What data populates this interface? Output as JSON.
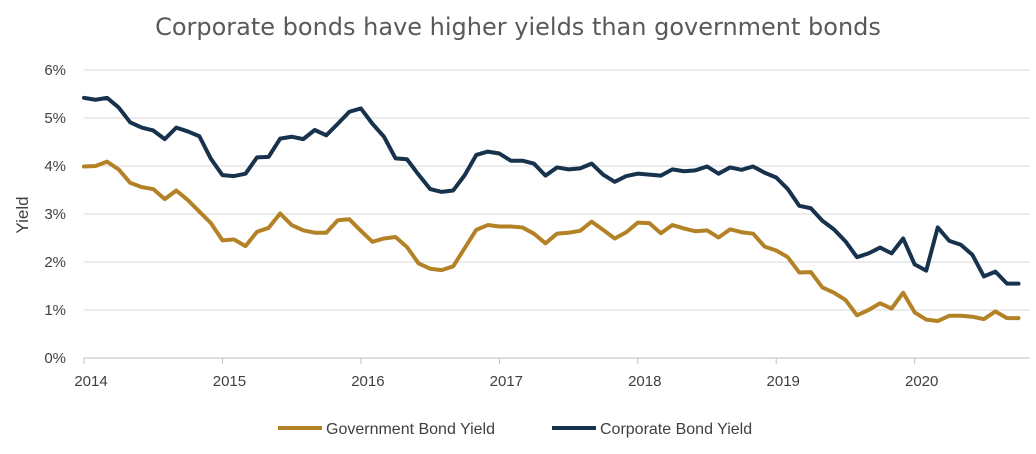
{
  "chart_data": {
    "type": "line",
    "title": "Corporate bonds have higher yields than government bonds",
    "xlabel": "",
    "ylabel": "Yield",
    "x_ticks": [
      "2014",
      "2015",
      "2016",
      "2017",
      "2018",
      "2019",
      "2020"
    ],
    "y_ticks": [
      "0%",
      "1%",
      "2%",
      "3%",
      "4%",
      "5%",
      "6%"
    ],
    "xlim": [
      2014.0,
      2020.833
    ],
    "ylim": [
      0,
      6
    ],
    "grid": "horizontal",
    "legend_position": "bottom",
    "x_step_months": 1,
    "x_start": "2014-01",
    "series": [
      {
        "name": "Government Bond Yield",
        "color": "#B48226",
        "values": [
          3.99,
          4.0,
          4.09,
          3.93,
          3.65,
          3.56,
          3.52,
          3.31,
          3.49,
          3.29,
          3.05,
          2.81,
          2.45,
          2.47,
          2.33,
          2.63,
          2.71,
          3.01,
          2.77,
          2.66,
          2.61,
          2.61,
          2.87,
          2.89,
          2.65,
          2.42,
          2.49,
          2.52,
          2.31,
          1.97,
          1.86,
          1.83,
          1.91,
          2.29,
          2.67,
          2.77,
          2.74,
          2.74,
          2.72,
          2.59,
          2.39,
          2.59,
          2.61,
          2.65,
          2.84,
          2.67,
          2.49,
          2.62,
          2.82,
          2.81,
          2.6,
          2.77,
          2.7,
          2.64,
          2.66,
          2.51,
          2.68,
          2.62,
          2.59,
          2.32,
          2.24,
          2.1,
          1.78,
          1.79,
          1.47,
          1.36,
          1.21,
          0.89,
          1.0,
          1.14,
          1.03,
          1.36,
          0.95,
          0.8,
          0.77,
          0.88,
          0.88,
          0.86,
          0.81,
          0.97,
          0.83,
          0.83
        ]
      },
      {
        "name": "Corporate Bond Yield",
        "color": "#17324D",
        "values": [
          5.42,
          5.38,
          5.42,
          5.22,
          4.91,
          4.8,
          4.74,
          4.56,
          4.8,
          4.72,
          4.62,
          4.15,
          3.81,
          3.79,
          3.84,
          4.18,
          4.19,
          4.57,
          4.61,
          4.56,
          4.75,
          4.64,
          4.88,
          5.13,
          5.2,
          4.88,
          4.61,
          4.16,
          4.14,
          3.82,
          3.52,
          3.46,
          3.49,
          3.81,
          4.23,
          4.3,
          4.26,
          4.11,
          4.11,
          4.05,
          3.8,
          3.97,
          3.93,
          3.95,
          4.05,
          3.82,
          3.67,
          3.79,
          3.84,
          3.82,
          3.8,
          3.93,
          3.89,
          3.91,
          3.99,
          3.84,
          3.97,
          3.92,
          3.99,
          3.86,
          3.76,
          3.52,
          3.17,
          3.12,
          2.86,
          2.68,
          2.43,
          2.1,
          2.18,
          2.3,
          2.18,
          2.49,
          1.95,
          1.82,
          2.72,
          2.44,
          2.36,
          2.15,
          1.7,
          1.8,
          1.55,
          1.55
        ]
      }
    ]
  }
}
